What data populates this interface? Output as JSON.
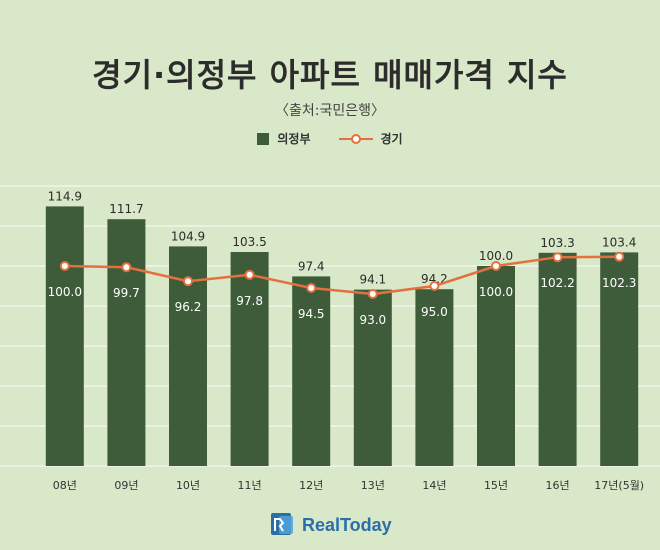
{
  "title": "경기·의정부 아파트 매매가격 지수",
  "subtitle": "〈출처:국민은행〉",
  "legend": {
    "bar_label": "의정부",
    "line_label": "경기"
  },
  "logo": {
    "text": "RealToday"
  },
  "colors": {
    "background": "#d8e8c9",
    "bar": "#3e5c3a",
    "line": "#e4703d",
    "grid": "#ffffff"
  },
  "chart_data": {
    "type": "bar",
    "categories": [
      "08년",
      "09년",
      "10년",
      "11년",
      "12년",
      "13년",
      "14년",
      "15년",
      "16년",
      "17년(5월)"
    ],
    "series": [
      {
        "name": "의정부",
        "type": "bar",
        "values": [
          114.9,
          111.7,
          104.9,
          103.5,
          97.4,
          94.1,
          94.2,
          100.0,
          103.3,
          103.4
        ]
      },
      {
        "name": "경기",
        "type": "line",
        "values": [
          100.0,
          99.7,
          96.2,
          97.8,
          94.5,
          93.0,
          95.0,
          100.0,
          102.2,
          102.3
        ]
      }
    ],
    "title": "경기·의정부 아파트 매매가격 지수",
    "xlabel": "",
    "ylabel": "",
    "ylim": [
      50,
      120
    ],
    "grid": true,
    "legend_position": "top-center"
  }
}
